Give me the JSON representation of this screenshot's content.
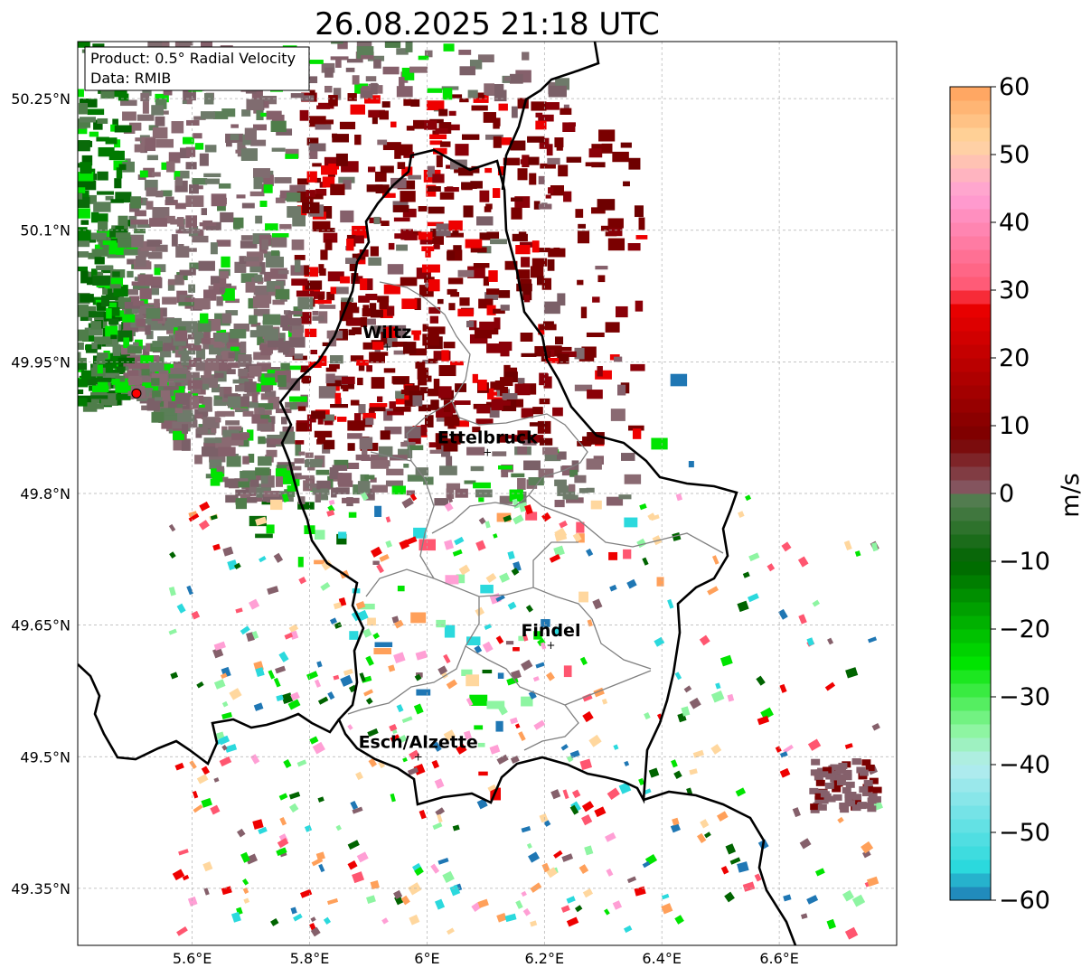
{
  "title": "26.08.2025 21:18 UTC",
  "info_box": {
    "product_label": "Product: 0.5° Radial Velocity",
    "data_label": "Data: RMIB"
  },
  "map": {
    "lon_range": [
      5.405,
      6.8
    ],
    "lat_range": [
      49.285,
      50.315
    ],
    "lon_ticks": [
      {
        "value": 5.6,
        "label": "5.6°E"
      },
      {
        "value": 5.8,
        "label": "5.8°E"
      },
      {
        "value": 6.0,
        "label": "6°E"
      },
      {
        "value": 6.2,
        "label": "6.2°E"
      },
      {
        "value": 6.4,
        "label": "6.4°E"
      },
      {
        "value": 6.6,
        "label": "6.6°E"
      }
    ],
    "lat_ticks": [
      {
        "value": 50.25,
        "label": "50.25°N"
      },
      {
        "value": 50.1,
        "label": "50.1°N"
      },
      {
        "value": 49.95,
        "label": "49.95°N"
      },
      {
        "value": 49.8,
        "label": "49.8°N"
      },
      {
        "value": 49.65,
        "label": "49.65°N"
      },
      {
        "value": 49.5,
        "label": "49.5°N"
      },
      {
        "value": 49.35,
        "label": "49.35°N"
      }
    ],
    "radar_site": {
      "lon": 5.505,
      "lat": 49.914
    },
    "cities": [
      {
        "name": "Wiltz",
        "lon": 5.932,
        "lat": 49.967
      },
      {
        "name": "Ettelbruck",
        "lon": 6.103,
        "lat": 49.847
      },
      {
        "name": "Findel",
        "lon": 6.211,
        "lat": 49.627
      },
      {
        "name": "Esch/Alzette",
        "lon": 5.985,
        "lat": 49.5
      }
    ]
  },
  "colorbar": {
    "label": "m/s",
    "vmin": -60,
    "vmax": 60,
    "ticks": [
      {
        "value": 60,
        "label": "60"
      },
      {
        "value": 50,
        "label": "50"
      },
      {
        "value": 40,
        "label": "40"
      },
      {
        "value": 30,
        "label": "30"
      },
      {
        "value": 20,
        "label": "20"
      },
      {
        "value": 10,
        "label": "10"
      },
      {
        "value": 0,
        "label": "0"
      },
      {
        "value": -10,
        "label": "−10"
      },
      {
        "value": -20,
        "label": "−20"
      },
      {
        "value": -30,
        "label": "−30"
      },
      {
        "value": -40,
        "label": "−40"
      },
      {
        "value": -50,
        "label": "−50"
      },
      {
        "value": -60,
        "label": "−60"
      }
    ],
    "colors": {
      "deep_blue": "#1f77b4",
      "cyan": "#2bd9dd",
      "light_cyan": "#b6ecef",
      "light_green": "#8ef5a2",
      "bright_green": "#00e400",
      "dark_green": "#006400",
      "gray_green": "#5b7f58",
      "mauve": "#85606b",
      "dark_red": "#7a0000",
      "red": "#ee0000",
      "pink_red": "#ff5670",
      "pink": "#ff9fd5",
      "peach": "#ffd79e",
      "orange": "#ffa05a"
    }
  }
}
